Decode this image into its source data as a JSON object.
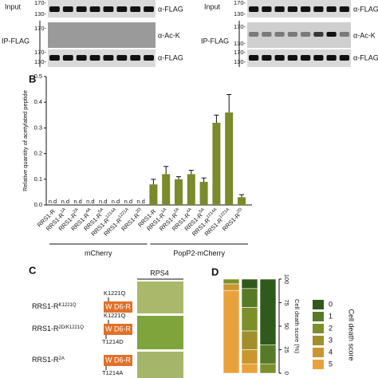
{
  "blots": {
    "left": {
      "input": "Input",
      "ip": "IP-FLAG",
      "markers": [
        "170-",
        "130-",
        "170-",
        "170-",
        "130-"
      ],
      "antibodies": [
        "α-FLAG",
        "α-Ac-K",
        "α-FLAG"
      ]
    },
    "right": {
      "input": "Input",
      "ip": "IP-FLAG",
      "markers": [
        "170-",
        "130-",
        "170-",
        "130-",
        "170-",
        "130-"
      ],
      "antibodies": [
        "α-FLAG",
        "α-Ac-K",
        "α-FLAG"
      ]
    }
  },
  "chart_data": [
    {
      "panel": "B",
      "type": "bar",
      "ylabel": "Relative quantity of acetylated peptide",
      "ylim": [
        0,
        0.5
      ],
      "yticks": [
        {
          "value": 0,
          "label": "0.0"
        },
        0.1,
        0.2,
        0.3,
        0.4,
        0.5
      ],
      "color": "#7b8a2a",
      "groups": [
        {
          "name": "mCherry",
          "categories": [
            "RRS1-R",
            "RRS1-R",
            "RRS1-R",
            "RRS1-R",
            "RRS1-R",
            "RRS1-R",
            "RRS1-R",
            "RRS1-R"
          ],
          "superscripts": [
            null,
            "1A",
            "2A",
            "4A",
            "5A",
            "1214A",
            "1221A",
            "2D"
          ],
          "values": [
            null,
            null,
            null,
            null,
            null,
            null,
            null,
            null
          ],
          "value_labels": [
            "n.d",
            "n.d",
            "n.d",
            "n.d",
            "n.d",
            "n.d",
            "n.d",
            "n.d"
          ]
        },
        {
          "name": "PopP2-mCherry",
          "categories": [
            "RRS1-R",
            "RRS1-R",
            "RRS1-R",
            "RRS1-R",
            "RRS1-R",
            "RRS1-R",
            "RRS1-R",
            "RRS1-R"
          ],
          "superscripts": [
            null,
            "1A",
            "2A",
            "4A",
            "5A",
            "1214A",
            "1221A",
            "2D"
          ],
          "values": [
            0.08,
            0.12,
            0.1,
            0.12,
            0.09,
            0.32,
            0.36,
            0.03
          ],
          "errors": [
            0.02,
            0.03,
            0.01,
            0.015,
            0.015,
            0.03,
            0.07,
            0.01
          ]
        }
      ]
    },
    {
      "panel": "D",
      "type": "stacked_bar",
      "ylabel": "Cell death score (%)",
      "legend_title": "Cell death score",
      "ylim": [
        0,
        100
      ],
      "yticks": [
        0,
        25,
        50,
        75,
        100
      ],
      "series": [
        {
          "name": "0",
          "color": "#2f5a1c",
          "values": [
            0,
            10,
            70
          ]
        },
        {
          "name": "1",
          "color": "#567a25",
          "values": [
            0,
            20,
            20
          ]
        },
        {
          "name": "2",
          "color": "#7d8f2b",
          "values": [
            5,
            25,
            10
          ]
        },
        {
          "name": "3",
          "color": "#a08f2c",
          "values": [
            0,
            20,
            0
          ]
        },
        {
          "name": "4",
          "color": "#c9962f",
          "values": [
            7,
            15,
            0
          ]
        },
        {
          "name": "5",
          "color": "#e9a23b",
          "values": [
            88,
            10,
            0
          ]
        }
      ]
    }
  ],
  "panel_c": {
    "label": "C",
    "header": "RPS4",
    "constructs": [
      {
        "name": "RRS1-R",
        "sup": "K1221Q",
        "domain": "W D6-R",
        "above": "K1221Q"
      },
      {
        "name": "RRS1-R",
        "sup": "2D/K1221Q",
        "domain": "W D6-R",
        "above": "K1221Q",
        "below": "T1214D"
      },
      {
        "name": "RRS1-R",
        "sup": "2A",
        "domain": "W D6-R",
        "below": "T1214A"
      }
    ]
  }
}
